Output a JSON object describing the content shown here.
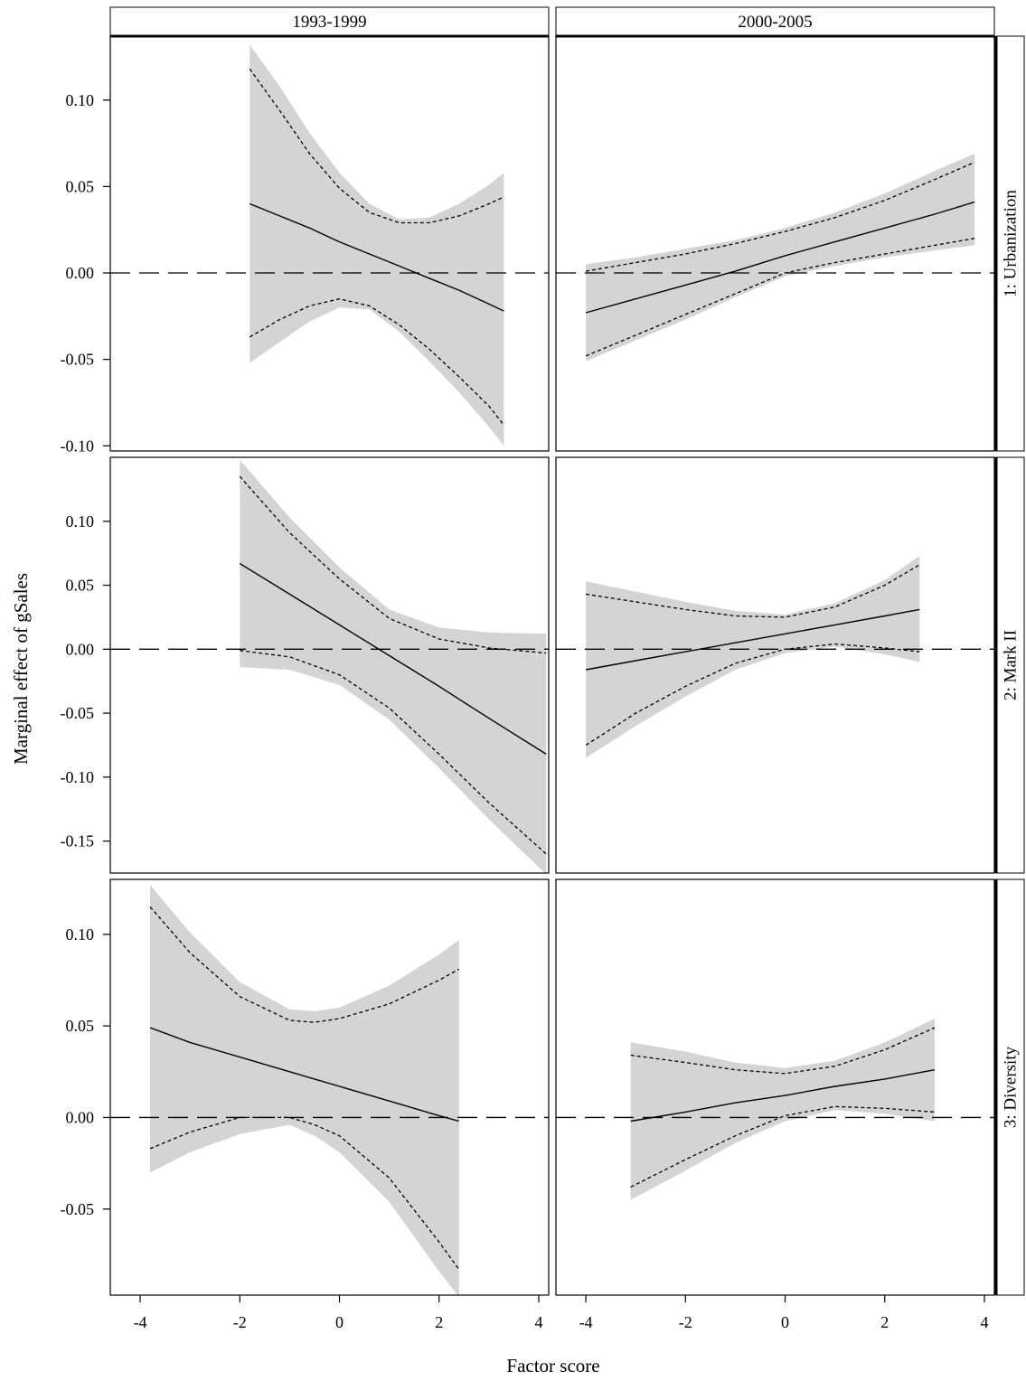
{
  "chart_data": {
    "type": "line",
    "xlabel": "Factor score",
    "ylabel": "Marginal effect of gSales",
    "columns": [
      "1993-1999",
      "2000-2005"
    ],
    "rows": [
      "1: Urbanization",
      "2: Mark II",
      "3: Diversity"
    ],
    "x_ticks": [
      -4,
      -2,
      0,
      2,
      4
    ],
    "xlim": [
      -4.6,
      4.2
    ],
    "reference_line_y": 0,
    "panels": [
      {
        "row": "1: Urbanization",
        "column": "1993-1999",
        "ylim": [
          -0.103,
          0.137
        ],
        "y_ticks": [
          0.1,
          0.05,
          0.0,
          -0.05,
          -0.1
        ],
        "y_tick_labels": [
          "0.10",
          "0.05",
          "0.00",
          "-0.05",
          "-0.10"
        ],
        "x": [
          -1.8,
          -1.2,
          -0.6,
          0.0,
          0.6,
          1.2,
          1.8,
          2.4,
          3.0,
          3.3
        ],
        "estimate": [
          0.04,
          0.033,
          0.026,
          0.018,
          0.011,
          0.004,
          -0.003,
          -0.01,
          -0.018,
          -0.022
        ],
        "ci_lower_dashed": [
          -0.037,
          -0.027,
          -0.019,
          -0.015,
          -0.019,
          -0.03,
          -0.044,
          -0.06,
          -0.077,
          -0.088
        ],
        "ci_upper_dashed": [
          0.118,
          0.094,
          0.069,
          0.049,
          0.035,
          0.029,
          0.029,
          0.033,
          0.04,
          0.044
        ],
        "band_lower": [
          -0.052,
          -0.04,
          -0.028,
          -0.02,
          -0.021,
          -0.034,
          -0.051,
          -0.069,
          -0.089,
          -0.1
        ],
        "band_upper": [
          0.132,
          0.108,
          0.081,
          0.058,
          0.04,
          0.031,
          0.032,
          0.04,
          0.051,
          0.058
        ]
      },
      {
        "row": "1: Urbanization",
        "column": "2000-2005",
        "ylim": [
          -0.103,
          0.137
        ],
        "y_ticks": [
          0.1,
          0.05,
          0.0,
          -0.05,
          -0.1
        ],
        "y_tick_labels": [
          "0.10",
          "0.05",
          "0.00",
          "-0.05",
          "-0.10"
        ],
        "x": [
          -4.0,
          -3.0,
          -2.0,
          -1.0,
          0.0,
          1.0,
          2.0,
          3.0,
          3.8
        ],
        "estimate": [
          -0.023,
          -0.015,
          -0.007,
          0.001,
          0.01,
          0.018,
          0.026,
          0.034,
          0.041
        ],
        "ci_lower_dashed": [
          -0.048,
          -0.036,
          -0.024,
          -0.012,
          0.0,
          0.006,
          0.011,
          0.016,
          0.02
        ],
        "ci_upper_dashed": [
          0.001,
          0.006,
          0.011,
          0.017,
          0.024,
          0.032,
          0.042,
          0.054,
          0.064
        ],
        "band_lower": [
          -0.051,
          -0.039,
          -0.027,
          -0.014,
          -0.002,
          0.004,
          0.009,
          0.013,
          0.016
        ],
        "band_upper": [
          0.005,
          0.009,
          0.014,
          0.019,
          0.026,
          0.035,
          0.046,
          0.059,
          0.069
        ]
      },
      {
        "row": "2: Mark II",
        "column": "1993-1999",
        "ylim": [
          -0.175,
          0.15
        ],
        "y_ticks": [
          0.1,
          0.05,
          0.0,
          -0.05,
          -0.1,
          -0.15
        ],
        "y_tick_labels": [
          "0.10",
          "0.05",
          "0.00",
          "-0.05",
          "-0.10",
          "-0.15"
        ],
        "x": [
          -2.0,
          -1.0,
          0.0,
          1.0,
          2.0,
          3.0,
          4.15
        ],
        "estimate": [
          0.067,
          0.043,
          0.019,
          -0.005,
          -0.029,
          -0.054,
          -0.082
        ],
        "ci_lower_dashed": [
          -0.001,
          -0.006,
          -0.02,
          -0.046,
          -0.082,
          -0.12,
          -0.16
        ],
        "ci_upper_dashed": [
          0.135,
          0.091,
          0.055,
          0.024,
          0.008,
          0.001,
          -0.003
        ],
        "band_lower": [
          -0.014,
          -0.016,
          -0.028,
          -0.055,
          -0.093,
          -0.133,
          -0.176
        ],
        "band_upper": [
          0.148,
          0.103,
          0.064,
          0.031,
          0.017,
          0.013,
          0.012
        ]
      },
      {
        "row": "2: Mark II",
        "column": "2000-2005",
        "ylim": [
          -0.175,
          0.15
        ],
        "y_ticks": [
          0.1,
          0.05,
          0.0,
          -0.05,
          -0.1,
          -0.15
        ],
        "y_tick_labels": [
          "0.10",
          "0.05",
          "0.00",
          "-0.05",
          "-0.10",
          "-0.15"
        ],
        "x": [
          -4.0,
          -3.0,
          -2.0,
          -1.0,
          0.0,
          1.0,
          2.0,
          2.7
        ],
        "estimate": [
          -0.016,
          -0.009,
          -0.002,
          0.005,
          0.012,
          0.019,
          0.026,
          0.031
        ],
        "ci_lower_dashed": [
          -0.075,
          -0.05,
          -0.029,
          -0.011,
          0.0,
          0.004,
          0.001,
          -0.002
        ],
        "ci_upper_dashed": [
          0.043,
          0.037,
          0.031,
          0.026,
          0.025,
          0.033,
          0.05,
          0.066
        ],
        "band_lower": [
          -0.085,
          -0.06,
          -0.037,
          -0.016,
          -0.003,
          0.002,
          -0.004,
          -0.01
        ],
        "band_upper": [
          0.053,
          0.045,
          0.037,
          0.03,
          0.027,
          0.036,
          0.054,
          0.073
        ]
      },
      {
        "row": "3: Diversity",
        "column": "1993-1999",
        "ylim": [
          -0.097,
          0.13
        ],
        "y_ticks": [
          0.1,
          0.05,
          0.0,
          -0.05
        ],
        "y_tick_labels": [
          "0.10",
          "0.05",
          "0.00",
          "-0.05"
        ],
        "x": [
          -3.8,
          -3.0,
          -2.0,
          -1.0,
          -0.5,
          0.0,
          1.0,
          2.0,
          2.4
        ],
        "estimate": [
          0.049,
          0.041,
          0.033,
          0.025,
          0.021,
          0.017,
          0.009,
          0.001,
          -0.002
        ],
        "ci_lower_dashed": [
          -0.017,
          -0.008,
          0.0,
          0.0,
          -0.004,
          -0.01,
          -0.033,
          -0.068,
          -0.083
        ],
        "ci_upper_dashed": [
          0.115,
          0.09,
          0.066,
          0.053,
          0.052,
          0.054,
          0.062,
          0.075,
          0.081
        ],
        "band_lower": [
          -0.03,
          -0.019,
          -0.009,
          -0.004,
          -0.01,
          -0.019,
          -0.046,
          -0.084,
          -0.098
        ],
        "band_upper": [
          0.127,
          0.101,
          0.074,
          0.059,
          0.058,
          0.06,
          0.072,
          0.089,
          0.097
        ]
      },
      {
        "row": "3: Diversity",
        "column": "2000-2005",
        "ylim": [
          -0.097,
          0.13
        ],
        "y_ticks": [
          0.1,
          0.05,
          0.0,
          -0.05
        ],
        "y_tick_labels": [
          "0.10",
          "0.05",
          "0.00",
          "-0.05"
        ],
        "x": [
          -3.1,
          -2.0,
          -1.0,
          0.0,
          1.0,
          2.0,
          3.0
        ],
        "estimate": [
          -0.002,
          0.003,
          0.008,
          0.012,
          0.017,
          0.021,
          0.026
        ],
        "ci_lower_dashed": [
          -0.038,
          -0.023,
          -0.01,
          0.001,
          0.006,
          0.005,
          0.003
        ],
        "ci_upper_dashed": [
          0.034,
          0.03,
          0.026,
          0.024,
          0.028,
          0.037,
          0.049
        ],
        "band_lower": [
          -0.045,
          -0.029,
          -0.014,
          -0.002,
          0.004,
          0.002,
          -0.002
        ],
        "band_upper": [
          0.041,
          0.036,
          0.03,
          0.027,
          0.031,
          0.041,
          0.054
        ]
      }
    ]
  }
}
